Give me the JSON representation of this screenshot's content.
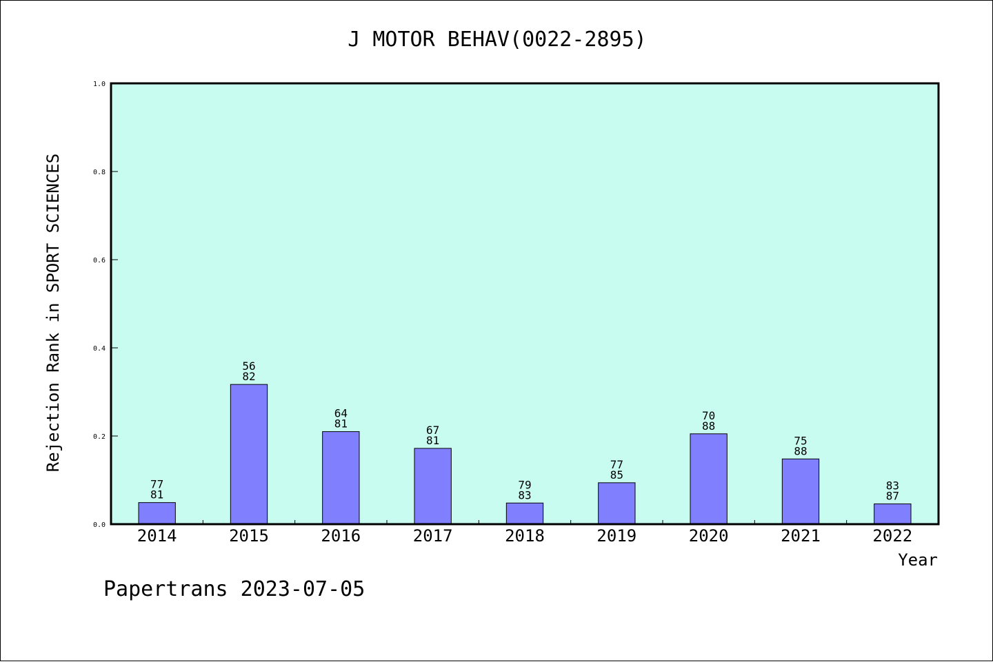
{
  "chart_data": {
    "type": "bar",
    "title": "J MOTOR BEHAV(0022-2895)",
    "xlabel": "Year",
    "ylabel": "Rejection Rank in SPORT SCIENCES",
    "ylim": [
      0,
      1.0
    ],
    "yticks": [
      "0.0",
      "0.2",
      "0.4",
      "0.6",
      "0.8",
      "1.0"
    ],
    "grid": false,
    "categories": [
      "2014",
      "2015",
      "2016",
      "2017",
      "2018",
      "2019",
      "2020",
      "2021",
      "2022"
    ],
    "values": [
      0.049,
      0.317,
      0.21,
      0.172,
      0.048,
      0.094,
      0.205,
      0.148,
      0.046
    ],
    "label_top": [
      "77",
      "56",
      "64",
      "67",
      "79",
      "77",
      "70",
      "75",
      "83"
    ],
    "label_bottom": [
      "81",
      "82",
      "81",
      "81",
      "83",
      "85",
      "88",
      "88",
      "87"
    ],
    "colors": {
      "plot_background": "#c8fcf0",
      "bar_fill": "#8080ff",
      "bar_stroke": "#000000"
    }
  },
  "footer": {
    "text": "Papertrans 2023-07-05"
  }
}
